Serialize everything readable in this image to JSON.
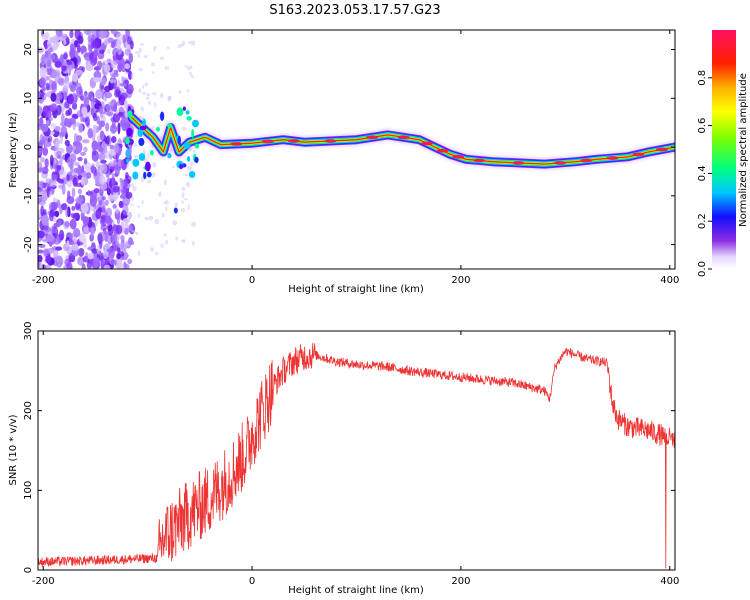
{
  "figure": {
    "title": "S163.2023.053.17.57.G23"
  },
  "chart_data": [
    {
      "type": "heatmap",
      "xlabel": "Height of straight line (km)",
      "ylabel": "Frequency (Hz)",
      "xlim": [
        -205,
        405
      ],
      "ylim": [
        -25,
        24
      ],
      "xticks": [
        "-200",
        "0",
        "200",
        "400"
      ],
      "yticks": [
        "20",
        "10",
        "0",
        "-10",
        "-20"
      ],
      "colorbar": {
        "label": "Normalized spectral amplitude",
        "range": [
          0,
          1
        ],
        "ticks": [
          "0.0",
          "0.2",
          "0.4",
          "0.6",
          "0.8"
        ]
      },
      "ridge_points": [
        {
          "x": -115,
          "y": 6
        },
        {
          "x": -105,
          "y": 4
        },
        {
          "x": -95,
          "y": 2
        },
        {
          "x": -85,
          "y": -1
        },
        {
          "x": -78,
          "y": 4
        },
        {
          "x": -70,
          "y": -1
        },
        {
          "x": -60,
          "y": 1
        },
        {
          "x": -45,
          "y": 2
        },
        {
          "x": -30,
          "y": 0.5
        },
        {
          "x": 0,
          "y": 0.8
        },
        {
          "x": 30,
          "y": 1.5
        },
        {
          "x": 50,
          "y": 1
        },
        {
          "x": 100,
          "y": 1.5
        },
        {
          "x": 130,
          "y": 2.5
        },
        {
          "x": 160,
          "y": 1.5
        },
        {
          "x": 175,
          "y": 0
        },
        {
          "x": 190,
          "y": -1.5
        },
        {
          "x": 205,
          "y": -2.5
        },
        {
          "x": 230,
          "y": -3
        },
        {
          "x": 280,
          "y": -3.5
        },
        {
          "x": 310,
          "y": -3
        },
        {
          "x": 330,
          "y": -2.5
        },
        {
          "x": 360,
          "y": -2
        },
        {
          "x": 380,
          "y": -1
        },
        {
          "x": 405,
          "y": 0
        }
      ]
    },
    {
      "type": "line",
      "xlabel": "Height of straight line (km)",
      "ylabel": "SNR (10 * v/v)",
      "xlim": [
        -205,
        405
      ],
      "ylim": [
        0,
        300
      ],
      "xticks": [
        "-200",
        "0",
        "200",
        "400"
      ],
      "yticks": [
        "0",
        "100",
        "200",
        "300"
      ],
      "color": "#ee3333",
      "series": [
        {
          "x": [
            -205,
            -150,
            -90,
            -85,
            -60,
            -40,
            -20,
            -5,
            0,
            10,
            20,
            30,
            40,
            50,
            60,
            80,
            100,
            130,
            150,
            200,
            250,
            280,
            285,
            290,
            300,
            320,
            340,
            345,
            350,
            360,
            380,
            390,
            395,
            400,
            405
          ],
          "values": [
            10,
            12,
            15,
            40,
            70,
            90,
            120,
            150,
            170,
            200,
            230,
            250,
            262,
            268,
            270,
            262,
            258,
            255,
            250,
            242,
            235,
            225,
            215,
            255,
            275,
            265,
            260,
            210,
            190,
            180,
            175,
            170,
            168,
            165,
            160
          ]
        }
      ]
    }
  ]
}
